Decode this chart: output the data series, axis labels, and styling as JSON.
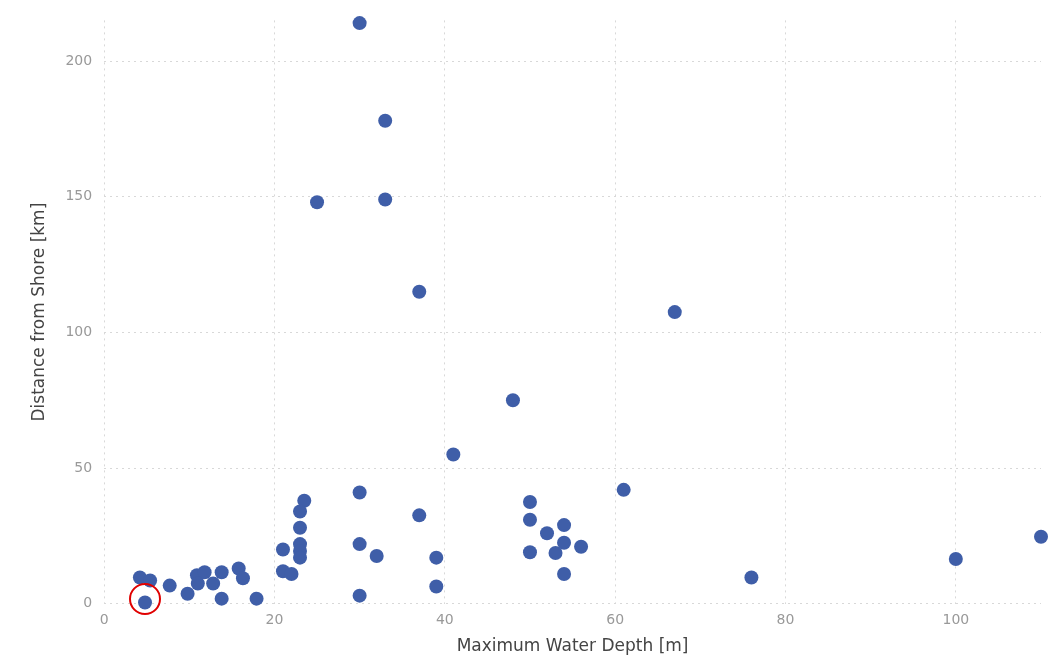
{
  "chart_data": {
    "type": "scatter",
    "xlabel": "Maximum Water Depth [m]",
    "ylabel": "Distance from Shore [km]",
    "series": [
      {
        "color": "#3f5ea8",
        "x": [
          30,
          33,
          25,
          33,
          37,
          67,
          48,
          41,
          61,
          23.5,
          30,
          23,
          23,
          23,
          23,
          23,
          21,
          21,
          22,
          30,
          32,
          30,
          37,
          39,
          39,
          50,
          50,
          50,
          52,
          54,
          54,
          53,
          56,
          54,
          76,
          100,
          110,
          4.2,
          5.4,
          4.8,
          7.7,
          9.8,
          10.9,
          11.8,
          11,
          12.8,
          13.8,
          13.8,
          15.8,
          16.3,
          17.9
        ],
        "values": [
          214,
          178,
          148,
          149,
          115,
          107.5,
          75,
          55,
          42,
          38,
          41,
          34,
          28,
          22,
          19.5,
          17,
          20,
          12,
          11,
          22,
          17.6,
          3,
          32.6,
          17,
          6.4,
          37.5,
          31,
          19,
          26,
          29,
          22.5,
          18.7,
          21,
          11,
          9.7,
          16.5,
          24.7,
          9.7,
          8.6,
          0.5,
          6.7,
          3.7,
          10.5,
          11.6,
          7.5,
          7.5,
          11.6,
          1.9,
          13,
          9.4,
          1.9
        ]
      }
    ],
    "xlim": [
      0,
      110
    ],
    "ylim": [
      0,
      215
    ],
    "xticks": [
      0,
      20,
      40,
      60,
      80,
      100
    ],
    "yticks": [
      0,
      50,
      100,
      150,
      200
    ],
    "grid": true,
    "marker": "circle",
    "legend": false
  }
}
